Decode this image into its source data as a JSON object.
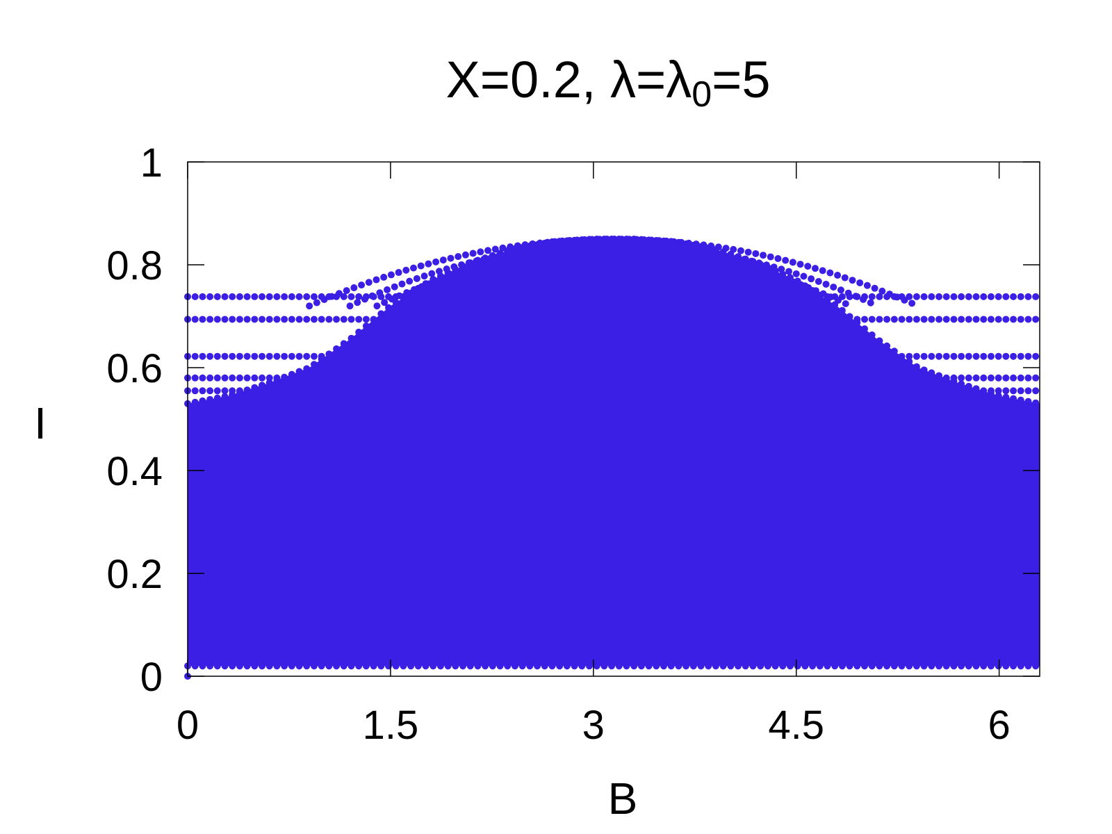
{
  "chart_data": {
    "type": "scatter",
    "title": {
      "main": "X=0.2, λ=λ",
      "sub": "0",
      "tail": "=5"
    },
    "xlabel": "B",
    "ylabel": "I",
    "xlim": [
      0,
      6.3
    ],
    "ylim": [
      0,
      1
    ],
    "xticks": [
      0,
      1.5,
      3,
      4.5,
      6
    ],
    "xtick_labels": [
      "0",
      "1.5",
      "3",
      "4.5",
      "6"
    ],
    "yticks": [
      0,
      0.2,
      0.4,
      0.6,
      0.8,
      1
    ],
    "ytick_labels": [
      "0",
      "0.2",
      "0.4",
      "0.6",
      "0.8",
      "1"
    ],
    "grid": false,
    "legend": "none",
    "color": "#3b1fe4",
    "envelope": {
      "x": [
        0,
        0.3,
        0.6,
        0.9,
        1.2,
        1.5,
        1.8,
        2.1,
        2.4,
        2.7,
        3.0,
        3.15,
        3.3,
        3.6,
        3.9,
        4.2,
        4.5,
        4.8,
        5.1,
        5.4,
        5.7,
        6.0,
        6.3
      ],
      "upper": [
        0.53,
        0.545,
        0.57,
        0.6,
        0.655,
        0.72,
        0.77,
        0.805,
        0.83,
        0.845,
        0.85,
        0.85,
        0.85,
        0.845,
        0.83,
        0.805,
        0.77,
        0.72,
        0.655,
        0.6,
        0.57,
        0.545,
        0.53
      ],
      "lower": 0.02
    },
    "flat_bands": [
      0.738,
      0.694,
      0.622,
      0.58,
      0.555,
      0.53,
      0.505,
      0.46,
      0.44,
      0.405,
      0.385
    ],
    "arc_bands": [
      {
        "peak": 0.85,
        "edge": 0.72,
        "from": 0.9,
        "to": 5.4
      },
      {
        "peak": 0.84,
        "edge": 0.72,
        "from": 1.2,
        "to": 5.1
      },
      {
        "peak": 0.83,
        "edge": 0.72,
        "from": 1.4,
        "to": 4.9
      }
    ]
  }
}
